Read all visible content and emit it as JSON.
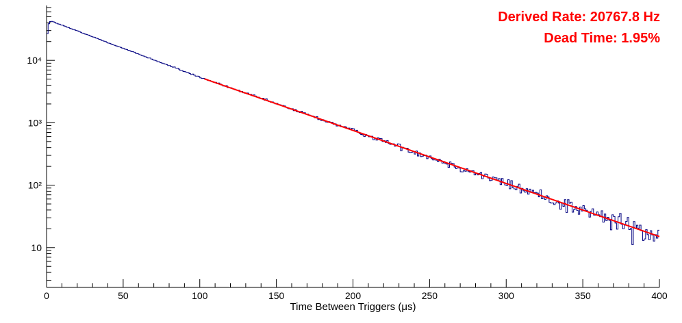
{
  "chart_data": {
    "type": "histogram",
    "title": "",
    "xlabel": "Time Between Triggers (μs)",
    "ylabel": "",
    "x_range": [
      0,
      400
    ],
    "y_scale": "log",
    "y_range": [
      2.3,
      75700
    ],
    "x_major_ticks": [
      0,
      50,
      100,
      150,
      200,
      250,
      300,
      350,
      400
    ],
    "x_minor_step": 10,
    "y_major_ticks": [
      {
        "value": 10,
        "label": "10"
      },
      {
        "value": 100,
        "label": "10²"
      },
      {
        "value": 1000,
        "label": "10³"
      },
      {
        "value": 10000,
        "label": "10⁴"
      }
    ],
    "n_bins": 400,
    "bin_width": 1,
    "series": [
      {
        "name": "time-between-triggers-histogram",
        "color": "#000080",
        "sampled_x": [
          0,
          3,
          10,
          20,
          30,
          40,
          50,
          60,
          70,
          80,
          90,
          100,
          110,
          120,
          130,
          140,
          150,
          160,
          170,
          180,
          190,
          200,
          210,
          220,
          230,
          240,
          250,
          260,
          270,
          280,
          290,
          300,
          310,
          320,
          330,
          340,
          350,
          360,
          370,
          380,
          390,
          400
        ],
        "sampled_y": [
          27000,
          42500,
          36600,
          29600,
          23900,
          19300,
          15600,
          12600,
          10200,
          8230,
          6650,
          5370,
          4410,
          3630,
          2980,
          2450,
          2015,
          1660,
          1360,
          1120,
          920,
          756,
          621,
          511,
          420,
          345,
          284,
          233,
          192,
          158,
          130,
          106,
          87,
          72,
          59,
          49,
          40,
          33,
          27,
          22,
          18,
          15
        ]
      },
      {
        "name": "exponential-fit",
        "color": "#ff0000",
        "x_start": 103,
        "x_end": 400,
        "y_at_x_start": 5050,
        "y_at_x_end": 15
      }
    ],
    "model": {
      "start_bins": [
        27000,
        38500,
        41800
      ],
      "peak": 42500,
      "early_decay_per_us": 0.02133,
      "fit_A": 5368,
      "fit_decay_per_us": 0.0196,
      "fit_x0": 100
    },
    "legend": null,
    "grid": false
  },
  "annotations": {
    "derived_rate": "Derived Rate: 20767.8 Hz",
    "dead_time": "Dead Time: 1.95%",
    "color": "#ff0000"
  },
  "axis_colors": {
    "axis": "#000000",
    "tick_label": "#000000"
  }
}
